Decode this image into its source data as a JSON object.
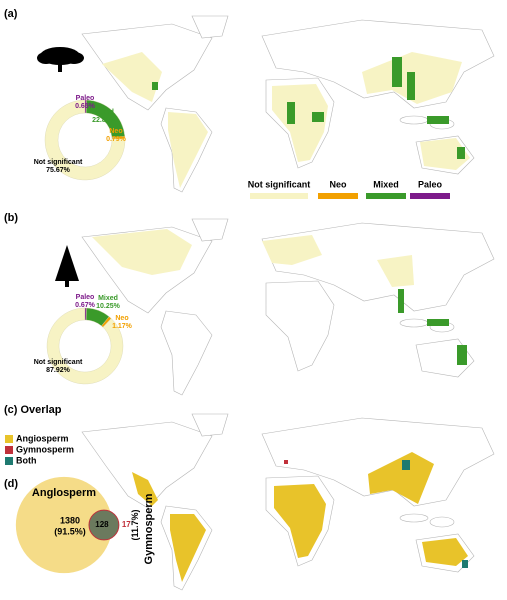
{
  "panel_labels": [
    "(a)",
    "(b)",
    "(c) Overlap",
    "(d)"
  ],
  "chart_data": [
    {
      "type": "pie",
      "donut": true,
      "categories": [
        "Not significant",
        "Neo",
        "Mixed",
        "Paleo"
      ],
      "values": [
        75.67,
        0.79,
        22.89,
        0.65
      ],
      "value_labels": [
        "75.67%",
        "0.79%",
        "22.89%",
        "0.65%"
      ],
      "colors": [
        "#f7f3c4",
        "#f2a000",
        "#3a9a2a",
        "#7d1a8a"
      ]
    },
    {
      "type": "pie",
      "donut": true,
      "categories": [
        "Not significant",
        "Neo",
        "Mixed",
        "Paleo"
      ],
      "values": [
        87.92,
        1.17,
        10.25,
        0.67
      ],
      "value_labels": [
        "87.92%",
        "1.17%",
        "10.25%",
        "0.67%"
      ],
      "colors": [
        "#f7f3c4",
        "#f2a000",
        "#3a9a2a",
        "#7d1a8a"
      ]
    }
  ],
  "overlap_legend": [
    {
      "name": "Angiosperm",
      "color": "#e8c32a"
    },
    {
      "name": "Gymnosperm",
      "color": "#c0303a"
    },
    {
      "name": "Both",
      "color": "#1e7a70"
    }
  ],
  "venn": {
    "sets": [
      {
        "name": "Anglosperm",
        "value": 1380,
        "share_label": "(91.5%)",
        "color": "#f5dc88"
      },
      {
        "name": "Gymnosperm",
        "value": 17,
        "share_label": "(11.7%)",
        "color": "#c0303a"
      }
    ],
    "overlap": 128,
    "overlap_color": "#6b7a5e"
  }
}
